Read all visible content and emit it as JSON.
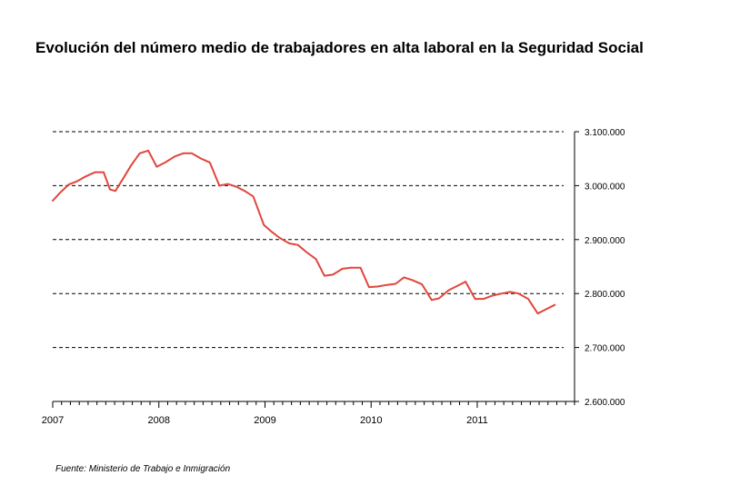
{
  "title": "Evolución del número medio de trabajadores en alta laboral en la Seguridad Social",
  "source": "Fuente: Ministerio de Trabajo e Inmigración",
  "colors": {
    "line": "#e0463c",
    "grid": "#000000",
    "axis": "#000000"
  },
  "chart_data": {
    "type": "line",
    "title": "Evolución del número medio de trabajadores en alta laboral en la Seguridad Social",
    "xlabel": "",
    "ylabel": "",
    "x_ticks": [
      "2007",
      "2008",
      "2009",
      "2010",
      "2011"
    ],
    "y_ticks": [
      "2.600.000",
      "2.700.000",
      "2.800.000",
      "2.900.000",
      "3.000.000",
      "3.100.000"
    ],
    "ylim": [
      2600000,
      3100000
    ],
    "xlim": [
      2007.0,
      2011.917
    ],
    "grid": "horizontal dashed",
    "y_axis_side": "right",
    "series": [
      {
        "values": [
          [
            2007.0,
            2972000
          ],
          [
            2007.07,
            2987000
          ],
          [
            2007.15,
            3002000
          ],
          [
            2007.23,
            3008000
          ],
          [
            2007.31,
            3017000
          ],
          [
            2007.4,
            3025000
          ],
          [
            2007.48,
            3025000
          ],
          [
            2007.54,
            2993000
          ],
          [
            2007.59,
            2990000
          ],
          [
            2007.66,
            3012000
          ],
          [
            2007.74,
            3038000
          ],
          [
            2007.82,
            3060000
          ],
          [
            2007.9,
            3065000
          ],
          [
            2007.98,
            3035000
          ],
          [
            2008.06,
            3043000
          ],
          [
            2008.15,
            3054000
          ],
          [
            2008.23,
            3060000
          ],
          [
            2008.31,
            3060000
          ],
          [
            2008.4,
            3050000
          ],
          [
            2008.48,
            3043000
          ],
          [
            2008.57,
            3000000
          ],
          [
            2008.65,
            3003000
          ],
          [
            2008.73,
            2998000
          ],
          [
            2008.81,
            2990000
          ],
          [
            2008.89,
            2980000
          ],
          [
            2008.99,
            2927000
          ],
          [
            2009.06,
            2915000
          ],
          [
            2009.14,
            2903000
          ],
          [
            2009.23,
            2893000
          ],
          [
            2009.31,
            2890000
          ],
          [
            2009.39,
            2877000
          ],
          [
            2009.48,
            2864000
          ],
          [
            2009.56,
            2833000
          ],
          [
            2009.64,
            2835000
          ],
          [
            2009.73,
            2846000
          ],
          [
            2009.81,
            2848000
          ],
          [
            2009.9,
            2848000
          ],
          [
            2009.98,
            2812000
          ],
          [
            2010.06,
            2813000
          ],
          [
            2010.15,
            2816000
          ],
          [
            2010.23,
            2818000
          ],
          [
            2010.31,
            2830000
          ],
          [
            2010.39,
            2825000
          ],
          [
            2010.48,
            2817000
          ],
          [
            2010.57,
            2788000
          ],
          [
            2010.64,
            2791000
          ],
          [
            2010.73,
            2806000
          ],
          [
            2010.81,
            2814000
          ],
          [
            2010.89,
            2822000
          ],
          [
            2010.98,
            2790000
          ],
          [
            2011.06,
            2790000
          ],
          [
            2011.14,
            2796000
          ],
          [
            2011.23,
            2800000
          ],
          [
            2011.31,
            2803000
          ],
          [
            2011.39,
            2800000
          ],
          [
            2011.48,
            2790000
          ],
          [
            2011.57,
            2763000
          ],
          [
            2011.64,
            2770000
          ],
          [
            2011.73,
            2779000
          ]
        ]
      }
    ]
  }
}
